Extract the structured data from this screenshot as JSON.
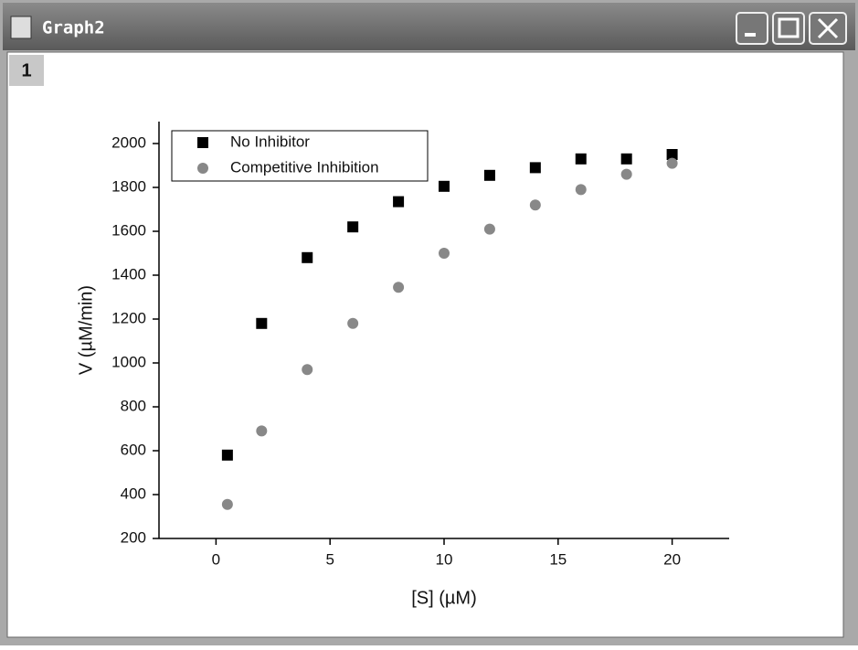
{
  "window": {
    "title": "Graph2",
    "layer_label": "1"
  },
  "chart_data": {
    "type": "scatter",
    "x_label": "[S] (µM)",
    "y_label": "V (µM/min)",
    "xlim": [
      -2.5,
      22.5
    ],
    "xticks": [
      0,
      5,
      10,
      15,
      20
    ],
    "ylim": [
      200,
      2100
    ],
    "yticks": [
      200,
      400,
      600,
      800,
      1000,
      1200,
      1400,
      1600,
      1800,
      2000
    ],
    "legend": "upper left",
    "series": [
      {
        "name": "No Inhibitor",
        "color": "#000000",
        "marker": "square",
        "x": [
          0.5,
          2,
          4,
          6,
          8,
          10,
          12,
          14,
          16,
          18,
          20
        ],
        "values": [
          580,
          1180,
          1480,
          1620,
          1735,
          1805,
          1855,
          1890,
          1930,
          1930,
          1950
        ]
      },
      {
        "name": "Competitive Inhibition",
        "color": "#888888",
        "marker": "circle",
        "x": [
          0.5,
          2,
          4,
          6,
          8,
          10,
          12,
          14,
          16,
          18,
          20
        ],
        "values": [
          355,
          690,
          970,
          1180,
          1345,
          1500,
          1610,
          1720,
          1790,
          1860,
          1910
        ]
      }
    ]
  }
}
